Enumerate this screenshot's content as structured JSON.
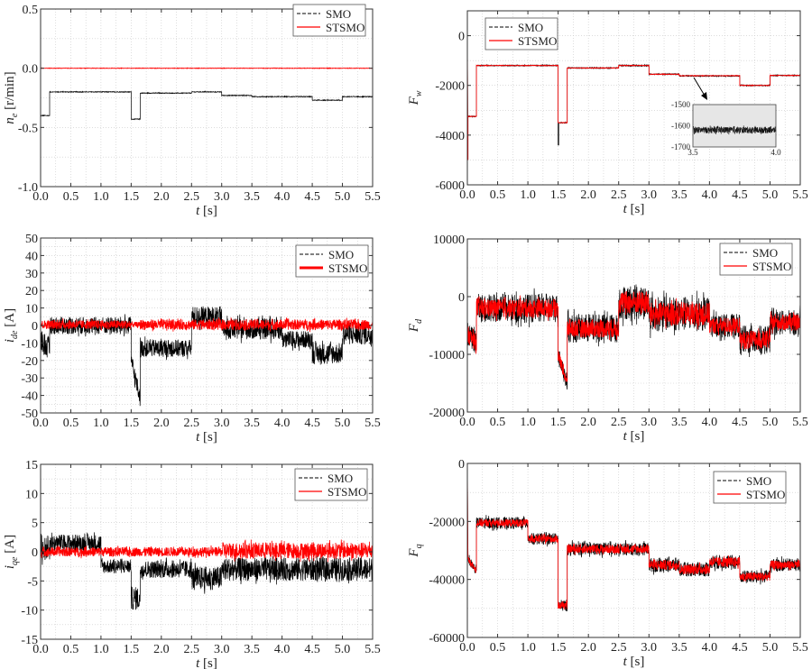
{
  "legend": {
    "smo": "SMO",
    "stsmo": "STSMO"
  },
  "colors": {
    "smo": "#000000",
    "stsmo": "#ff0000",
    "grid": "#c8c8c8",
    "inset_bg": "#e6e6e6"
  },
  "chart_data": [
    {
      "type": "line",
      "xlabel": {
        "symbol": "t",
        "unit": "[s]"
      },
      "ylabel": {
        "symbol": "n",
        "sub": "e",
        "unit": "[r/min]"
      },
      "xlim": [
        0,
        5.5
      ],
      "ylim": [
        -1.0,
        0.5
      ],
      "xticks": [
        "0.0",
        "0.5",
        "1.0",
        "1.5",
        "2.0",
        "2.5",
        "3.0",
        "3.5",
        "4.0",
        "4.5",
        "5.0",
        "5.5"
      ],
      "yticks": [
        "0.5",
        "0.0",
        "-0.5",
        "-1.0"
      ],
      "grid": true,
      "legend_position": "top-right",
      "series": [
        {
          "name": "SMO",
          "style": "dashed",
          "segments": [
            [
              0,
              0.15,
              -0.4,
              -0.4,
              0.003
            ],
            [
              0.15,
              1.5,
              -0.2,
              -0.2,
              0.003
            ],
            [
              1.5,
              1.65,
              -0.43,
              -0.43,
              0.003
            ],
            [
              1.65,
              2.5,
              -0.21,
              -0.21,
              0.003
            ],
            [
              2.5,
              3.0,
              -0.2,
              -0.2,
              0.003
            ],
            [
              3.0,
              3.5,
              -0.23,
              -0.23,
              0.003
            ],
            [
              3.5,
              4.5,
              -0.24,
              -0.24,
              0.003
            ],
            [
              4.5,
              5.0,
              -0.27,
              -0.27,
              0.003
            ],
            [
              5.0,
              5.5,
              -0.24,
              -0.24,
              0.003
            ]
          ]
        },
        {
          "name": "STSMO",
          "style": "solid",
          "segments": [
            [
              0,
              5.5,
              0,
              0,
              0.002
            ]
          ]
        }
      ]
    },
    {
      "type": "line",
      "xlabel": {
        "symbol": "t",
        "unit": "[s]"
      },
      "ylabel": {
        "symbol": "F",
        "sub": "w",
        "unit": ""
      },
      "xlim": [
        0,
        5.5
      ],
      "ylim": [
        -6000,
        1000
      ],
      "xticks": [
        "0.0",
        "0.5",
        "1.0",
        "1.5",
        "2.0",
        "2.5",
        "3.0",
        "3.5",
        "4.0",
        "4.5",
        "5.0",
        "5.5"
      ],
      "yticks": [
        "0",
        "-2000",
        "-4000",
        "-6000"
      ],
      "grid": true,
      "legend_position": "top-left",
      "series": [
        {
          "name": "SMO",
          "style": "dashed",
          "segments": [
            [
              0,
              0.01,
              0,
              -5000,
              0
            ],
            [
              0.01,
              0.15,
              -3250,
              -3250,
              20
            ],
            [
              0.15,
              1.5,
              -1200,
              -1200,
              20
            ],
            [
              1.5,
              1.51,
              -4400,
              -4400,
              0
            ],
            [
              1.51,
              1.65,
              -3500,
              -3500,
              20
            ],
            [
              1.65,
              2.5,
              -1300,
              -1300,
              20
            ],
            [
              2.5,
              3.0,
              -1200,
              -1200,
              30
            ],
            [
              3.0,
              3.5,
              -1550,
              -1550,
              20
            ],
            [
              3.5,
              4.5,
              -1620,
              -1620,
              20
            ],
            [
              4.5,
              5.0,
              -2000,
              -2000,
              20
            ],
            [
              5.0,
              5.5,
              -1600,
              -1600,
              20
            ]
          ]
        },
        {
          "name": "STSMO",
          "style": "solid",
          "segments": [
            [
              0,
              0.01,
              0,
              -5000,
              0
            ],
            [
              0.01,
              0.15,
              -3250,
              -3250,
              10
            ],
            [
              0.15,
              1.5,
              -1200,
              -1200,
              10
            ],
            [
              1.5,
              1.65,
              -3500,
              -3500,
              10
            ],
            [
              1.65,
              2.5,
              -1300,
              -1300,
              10
            ],
            [
              2.5,
              3.0,
              -1200,
              -1200,
              10
            ],
            [
              3.0,
              3.5,
              -1550,
              -1550,
              10
            ],
            [
              3.5,
              4.5,
              -1610,
              -1610,
              10
            ],
            [
              4.5,
              5.0,
              -2000,
              -2000,
              10
            ],
            [
              5.0,
              5.5,
              -1600,
              -1600,
              10
            ]
          ]
        }
      ],
      "inset": {
        "xlim": [
          3.5,
          4.0
        ],
        "ylim": [
          -1700,
          -1500
        ],
        "xticks": [
          "3.5",
          "4.0"
        ],
        "yticks": [
          "-1500",
          "-1600",
          "-1700"
        ],
        "level": -1620,
        "noise": 15
      }
    },
    {
      "type": "line",
      "xlabel": {
        "symbol": "t",
        "unit": "[s]"
      },
      "ylabel": {
        "symbol": "i",
        "sub": "de",
        "unit": "[A]"
      },
      "xlim": [
        0,
        5.5
      ],
      "ylim": [
        -50,
        50
      ],
      "xticks": [
        "0.0",
        "0.5",
        "1.0",
        "1.5",
        "2.0",
        "2.5",
        "3.0",
        "3.5",
        "4.0",
        "4.5",
        "5.0",
        "5.5"
      ],
      "yticks": [
        "50",
        "40",
        "30",
        "20",
        "10",
        "0",
        "-10",
        "-20",
        "-30",
        "-40",
        "-50"
      ],
      "grid": true,
      "legend_position": "top-right",
      "series": [
        {
          "name": "SMO",
          "style": "dashed",
          "segments": [
            [
              0,
              0.15,
              -8,
              -14,
              7
            ],
            [
              0.15,
              1.5,
              0,
              0,
              5
            ],
            [
              1.5,
              1.65,
              -20,
              -42,
              5
            ],
            [
              1.65,
              2.5,
              -13,
              -13,
              5
            ],
            [
              2.5,
              3.0,
              5,
              5,
              6
            ],
            [
              3.0,
              4.0,
              -2,
              -2,
              6
            ],
            [
              4.0,
              4.5,
              -8,
              -8,
              5
            ],
            [
              4.5,
              5.0,
              -16,
              -16,
              6
            ],
            [
              5.0,
              5.5,
              -5,
              -5,
              6
            ]
          ]
        },
        {
          "name": "STSMO",
          "style": "solid",
          "segments": [
            [
              0,
              1.5,
              0.5,
              0.5,
              2.5
            ],
            [
              1.5,
              1.65,
              0.5,
              0.5,
              1.5
            ],
            [
              1.65,
              5.5,
              0.5,
              0.5,
              3
            ]
          ]
        }
      ]
    },
    {
      "type": "line",
      "xlabel": {
        "symbol": "t",
        "unit": "[s]"
      },
      "ylabel": {
        "symbol": "F",
        "sub": "d",
        "unit": ""
      },
      "xlim": [
        0,
        5.5
      ],
      "ylim": [
        -20000,
        10000
      ],
      "xticks": [
        "0.0",
        "0.5",
        "1.0",
        "1.5",
        "2.0",
        "2.5",
        "3.0",
        "3.5",
        "4.0",
        "4.5",
        "5.0",
        "5.5"
      ],
      "yticks": [
        "10000",
        "0",
        "-10000",
        "-20000"
      ],
      "grid": true,
      "legend_position": "top-right",
      "series": [
        {
          "name": "SMO",
          "style": "dashed",
          "segments": [
            [
              0,
              0.15,
              -6500,
              -8000,
              2000
            ],
            [
              0.15,
              1.5,
              -2000,
              -2000,
              2500
            ],
            [
              1.5,
              1.65,
              -10000,
              -15000,
              1500
            ],
            [
              1.65,
              2.5,
              -5500,
              -5500,
              2500
            ],
            [
              2.5,
              3.0,
              -1000,
              -1000,
              3000
            ],
            [
              3.0,
              4.0,
              -3000,
              -3000,
              3000
            ],
            [
              4.0,
              4.5,
              -5000,
              -5000,
              2000
            ],
            [
              4.5,
              5.0,
              -7500,
              -7500,
              2500
            ],
            [
              5.0,
              5.5,
              -4500,
              -4500,
              2200
            ]
          ]
        },
        {
          "name": "STSMO",
          "style": "solid",
          "segments": [
            [
              0,
              0.15,
              -6500,
              -8000,
              1500
            ],
            [
              0.15,
              1.5,
              -2000,
              -2000,
              1600
            ],
            [
              1.5,
              1.65,
              -10000,
              -15000,
              1000
            ],
            [
              1.65,
              2.5,
              -5500,
              -5500,
              1600
            ],
            [
              2.5,
              3.0,
              -1000,
              -1000,
              2000
            ],
            [
              3.0,
              4.0,
              -3000,
              -3000,
              2000
            ],
            [
              4.0,
              4.5,
              -5000,
              -5000,
              1400
            ],
            [
              4.5,
              5.0,
              -7500,
              -7500,
              1600
            ],
            [
              5.0,
              5.5,
              -4500,
              -4500,
              1400
            ]
          ]
        }
      ]
    },
    {
      "type": "line",
      "xlabel": {
        "symbol": "t",
        "unit": "[s]"
      },
      "ylabel": {
        "symbol": "i",
        "sub": "qe",
        "unit": "[A]"
      },
      "xlim": [
        0,
        5.5
      ],
      "ylim": [
        -15,
        15
      ],
      "xticks": [
        "0.0",
        "0.5",
        "1.0",
        "1.5",
        "2.0",
        "2.5",
        "3.0",
        "3.5",
        "4.0",
        "4.5",
        "5.0",
        "5.5"
      ],
      "yticks": [
        "15",
        "10",
        "5",
        "0",
        "-5",
        "-10",
        "-15"
      ],
      "grid": true,
      "legend_position": "top-right",
      "series": [
        {
          "name": "SMO",
          "style": "dashed",
          "segments": [
            [
              0,
              0.15,
              0.5,
              0.5,
              2
            ],
            [
              0.15,
              1.0,
              1.5,
              1.5,
              1.5
            ],
            [
              1.0,
              1.5,
              -2.5,
              -2.5,
              1.2
            ],
            [
              1.5,
              1.65,
              -8,
              -8,
              2
            ],
            [
              1.65,
              2.5,
              -3,
              -3,
              1.5
            ],
            [
              2.5,
              3.0,
              -4.5,
              -4.5,
              2
            ],
            [
              3.0,
              5.5,
              -3,
              -3,
              2
            ]
          ]
        },
        {
          "name": "STSMO",
          "style": "solid",
          "segments": [
            [
              0,
              3.0,
              0,
              0,
              0.8
            ],
            [
              3.0,
              5.5,
              0.2,
              0.2,
              1.4
            ]
          ]
        }
      ]
    },
    {
      "type": "line",
      "xlabel": {
        "symbol": "t",
        "unit": "[s]"
      },
      "ylabel": {
        "symbol": "F",
        "sub": "q",
        "unit": ""
      },
      "xlim": [
        0,
        5.5
      ],
      "ylim": [
        -60000,
        0
      ],
      "xticks": [
        "0.0",
        "0.5",
        "1.0",
        "1.5",
        "2.0",
        "2.5",
        "3.0",
        "3.5",
        "4.0",
        "4.5",
        "5.0",
        "5.5"
      ],
      "yticks": [
        "0",
        "-20000",
        "-40000",
        "-60000"
      ],
      "grid": true,
      "legend_position": "top-right",
      "series": [
        {
          "name": "SMO",
          "style": "dashed",
          "segments": [
            [
              0,
              0.01,
              0,
              -32000,
              0
            ],
            [
              0.01,
              0.15,
              -33000,
              -37000,
              1500
            ],
            [
              0.15,
              1.0,
              -20500,
              -20500,
              2000
            ],
            [
              1.0,
              1.5,
              -26000,
              -26000,
              2000
            ],
            [
              1.5,
              1.65,
              -49000,
              -49000,
              2000
            ],
            [
              1.65,
              3.0,
              -29500,
              -29500,
              2200
            ],
            [
              3.0,
              3.5,
              -35000,
              -35000,
              2500
            ],
            [
              3.5,
              4.0,
              -36500,
              -36500,
              2500
            ],
            [
              4.0,
              4.5,
              -34000,
              -34000,
              2500
            ],
            [
              4.5,
              5.0,
              -39000,
              -39000,
              2200
            ],
            [
              5.0,
              5.5,
              -35000,
              -35000,
              2200
            ]
          ]
        },
        {
          "name": "STSMO",
          "style": "solid",
          "segments": [
            [
              0,
              0.01,
              0,
              -32000,
              0
            ],
            [
              0.01,
              0.15,
              -33000,
              -37000,
              1000
            ],
            [
              0.15,
              1.0,
              -20500,
              -20500,
              1300
            ],
            [
              1.0,
              1.5,
              -26000,
              -26000,
              1300
            ],
            [
              1.5,
              1.65,
              -49000,
              -49000,
              1300
            ],
            [
              1.65,
              3.0,
              -29500,
              -29500,
              1500
            ],
            [
              3.0,
              3.5,
              -35000,
              -35000,
              1700
            ],
            [
              3.5,
              4.0,
              -36500,
              -36500,
              1700
            ],
            [
              4.0,
              4.5,
              -34000,
              -34000,
              1700
            ],
            [
              4.5,
              5.0,
              -39000,
              -39000,
              1500
            ],
            [
              5.0,
              5.5,
              -35000,
              -35000,
              1500
            ]
          ]
        }
      ]
    }
  ]
}
